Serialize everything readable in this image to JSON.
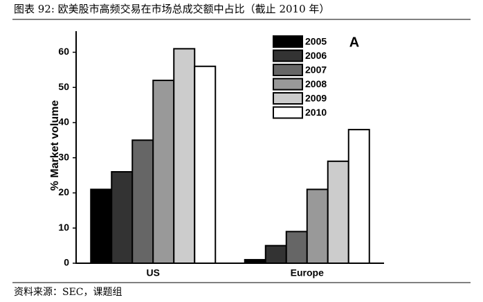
{
  "chart_data": {
    "type": "bar",
    "title": "图表 92: 欧美股市高频交易在市场总成交额中占比（截止 2010 年）",
    "source": "资料来源：SEC，课题组",
    "annotation": "A",
    "y_label": "% Market volume",
    "categories": [
      "US",
      "Europe"
    ],
    "series": [
      {
        "name": "2005",
        "color": "#000000",
        "values": [
          21,
          1
        ]
      },
      {
        "name": "2006",
        "color": "#333333",
        "values": [
          26,
          5
        ]
      },
      {
        "name": "2007",
        "color": "#666666",
        "values": [
          35,
          9
        ]
      },
      {
        "name": "2008",
        "color": "#999999",
        "values": [
          52,
          21
        ]
      },
      {
        "name": "2009",
        "color": "#cccccc",
        "values": [
          61,
          29
        ]
      },
      {
        "name": "2010",
        "color": "#ffffff",
        "values": [
          56,
          38
        ]
      }
    ],
    "ylim": [
      0,
      66
    ],
    "yticks": [
      0,
      10,
      20,
      30,
      40,
      50,
      60
    ]
  }
}
